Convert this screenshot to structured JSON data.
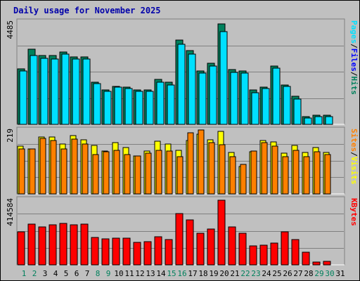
{
  "chart_data": {
    "type": "bar",
    "title": "Daily usage for November 2025",
    "days": [
      "1",
      "2",
      "3",
      "4",
      "5",
      "6",
      "7",
      "8",
      "9",
      "10",
      "11",
      "12",
      "13",
      "14",
      "15",
      "16",
      "17",
      "18",
      "19",
      "20",
      "21",
      "22",
      "23",
      "24",
      "25",
      "26",
      "27",
      "28",
      "29",
      "30",
      "31"
    ],
    "weekend_days": [
      "1",
      "2",
      "8",
      "9",
      "15",
      "16",
      "22",
      "23",
      "29",
      "30"
    ],
    "colors": {
      "hits": "#00805c",
      "files": "#0000ff",
      "pages": "#00e0ff",
      "visits": "#ffff00",
      "sites": "#ff8000",
      "kbytes": "#ff0000",
      "weekday_label": "#000000",
      "weekend_label": "#00805c",
      "title": "#0000aa"
    },
    "panels": [
      {
        "id": "hits-files-pages",
        "ymax": 4485,
        "ymax_label": "4485",
        "legend": [
          "Pages",
          "Files",
          "Hits"
        ],
        "series": [
          {
            "name": "Hits",
            "values": [
              2405,
              3245,
              2970,
              2970,
              3135,
              2915,
              2915,
              1815,
              1485,
              1650,
              1595,
              1485,
              1485,
              1925,
              1815,
              3630,
              3190,
              2310,
              2640,
              4320,
              2365,
              2310,
              1485,
              1595,
              2530,
              1705,
              1210,
              330,
              385,
              385,
              0
            ]
          },
          {
            "name": "Pages",
            "values": [
              2310,
              2970,
              2860,
              2805,
              3025,
              2805,
              2805,
              1760,
              1430,
              1595,
              1540,
              1430,
              1430,
              1815,
              1705,
              3465,
              3025,
              2200,
              2530,
              4015,
              2255,
              2200,
              1375,
              1540,
              2420,
              1650,
              1100,
              275,
              330,
              330,
              0
            ]
          }
        ]
      },
      {
        "id": "visits-sites",
        "ymax": 219,
        "ymax_label": "219",
        "legend": [
          "Sites",
          "Visits"
        ],
        "series": [
          {
            "name": "Visits",
            "values": [
              159,
              150,
              190,
              190,
              167,
              195,
              182,
              163,
              144,
              172,
              156,
              128,
              144,
              177,
              167,
              145,
              178,
              201,
              182,
              209,
              140,
              91,
              141,
              180,
              175,
              136,
              163,
              139,
              156,
              139,
              0
            ]
          },
          {
            "name": "Sites",
            "values": [
              150,
              150,
              186,
              180,
              150,
              183,
              168,
              131,
              142,
              147,
              131,
              127,
              136,
              146,
              143,
              124,
              206,
              214,
              173,
              165,
              125,
              98,
              144,
              172,
              161,
              125,
              147,
              125,
              142,
              132,
              0
            ]
          }
        ]
      },
      {
        "id": "kbytes",
        "ymax": 414584,
        "ymax_label": "414584",
        "legend": [
          "KBytes"
        ],
        "series": [
          {
            "name": "KBytes",
            "values": [
              204000,
              253000,
              234000,
              248000,
              256000,
              248000,
              251000,
              172000,
              160000,
              164000,
              164000,
              138000,
              144000,
              176000,
              155000,
              318000,
              281000,
              196000,
              222000,
              403000,
              236000,
              196000,
              120000,
              122000,
              134000,
              204000,
              156000,
              80000,
              18000,
              20000,
              0
            ]
          }
        ]
      }
    ]
  }
}
